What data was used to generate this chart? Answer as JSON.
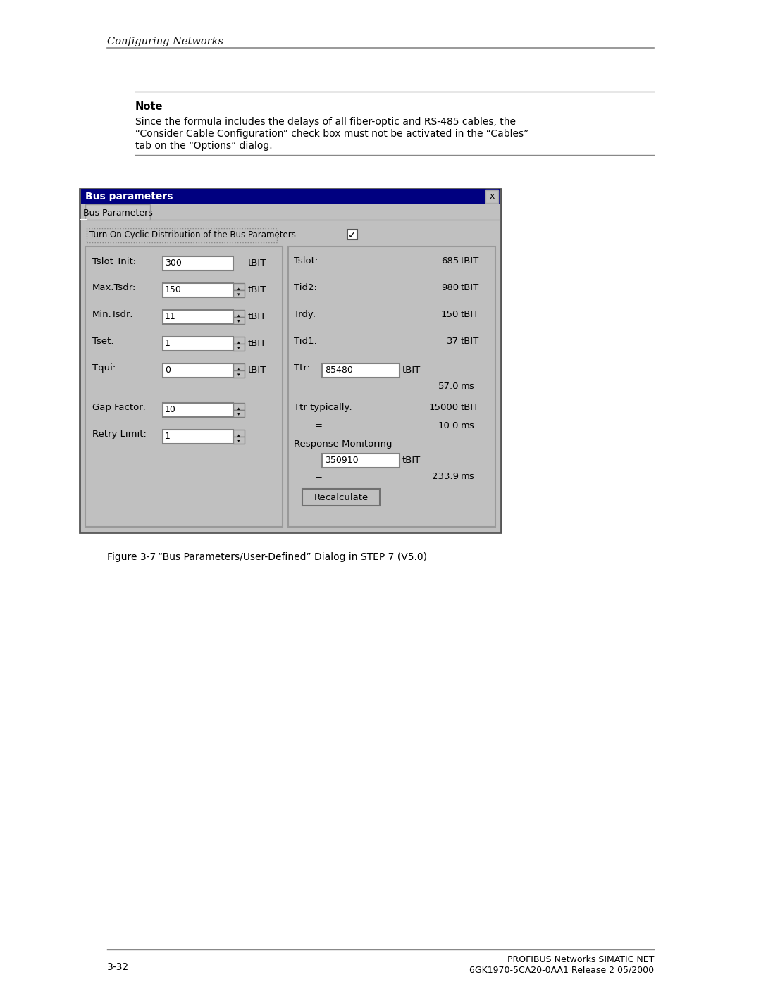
{
  "page_header": "Configuring Networks",
  "note_title": "Note",
  "note_text_line1": "Since the formula includes the delays of all fiber-optic and RS-485 cables, the",
  "note_text_line2": "“Consider Cable Configuration” check box must not be activated in the “Cables”",
  "note_text_line3": "tab on the “Options” dialog.",
  "dialog_title": "Bus parameters",
  "tab_label": "Bus Parameters",
  "cyclic_label": "Turn On Cyclic Distribution of the Bus Parameters",
  "left_params": [
    {
      "label": "Tslot_Init:",
      "value": "300",
      "unit": "tBIT",
      "has_spinner": false
    },
    {
      "label": "Max.Tsdr:",
      "value": "150",
      "unit": "tBIT",
      "has_spinner": true
    },
    {
      "label": "Min.Tsdr:",
      "value": "11",
      "unit": "tBIT",
      "has_spinner": true
    },
    {
      "label": "Tset:",
      "value": "1",
      "unit": "tBIT",
      "has_spinner": true
    },
    {
      "label": "Tqui:",
      "value": "0",
      "unit": "tBIT",
      "has_spinner": true
    }
  ],
  "left_params2": [
    {
      "label": "Gap Factor:",
      "value": "10",
      "unit": "",
      "has_spinner": true
    },
    {
      "label": "Retry Limit:",
      "value": "1",
      "unit": "",
      "has_spinner": true
    }
  ],
  "right_params": [
    {
      "label": "Tslot:",
      "value": "685",
      "unit": "tBIT"
    },
    {
      "label": "Tid2:",
      "value": "980",
      "unit": "tBIT"
    },
    {
      "label": "Trdy:",
      "value": "150",
      "unit": "tBIT"
    },
    {
      "label": "Tid1:",
      "value": "37",
      "unit": "tBIT"
    }
  ],
  "ttr_label": "Ttr:",
  "ttr_value": "85480",
  "ttr_unit": "tBIT",
  "ttr_ms": "57.0",
  "ttr_typically_label": "Ttr typically:",
  "ttr_typically_value": "15000",
  "ttr_typically_unit": "tBIT",
  "ttr_typically_ms": "10.0",
  "response_label": "Response Monitoring",
  "response_value": "350910",
  "response_unit": "tBIT",
  "response_ms": "233.9",
  "recalculate_label": "Recalculate",
  "figure_label": "Figure 3-7",
  "figure_caption": "“Bus Parameters/User-Defined” Dialog in STEP 7 (V5.0)",
  "page_number": "3-32",
  "footer_right1": "PROFIBUS Networks SIMATIC NET",
  "footer_right2": "6GK1970-5CA20-0AA1 Release 2 05/2000",
  "bg_color": "#ffffff",
  "dialog_bg": "#c0c0c0",
  "dialog_title_bg": "#000080",
  "dialog_title_color": "#ffffff",
  "input_bg": "#ffffff",
  "header_line_color": "#888888",
  "note_line_color": "#888888"
}
